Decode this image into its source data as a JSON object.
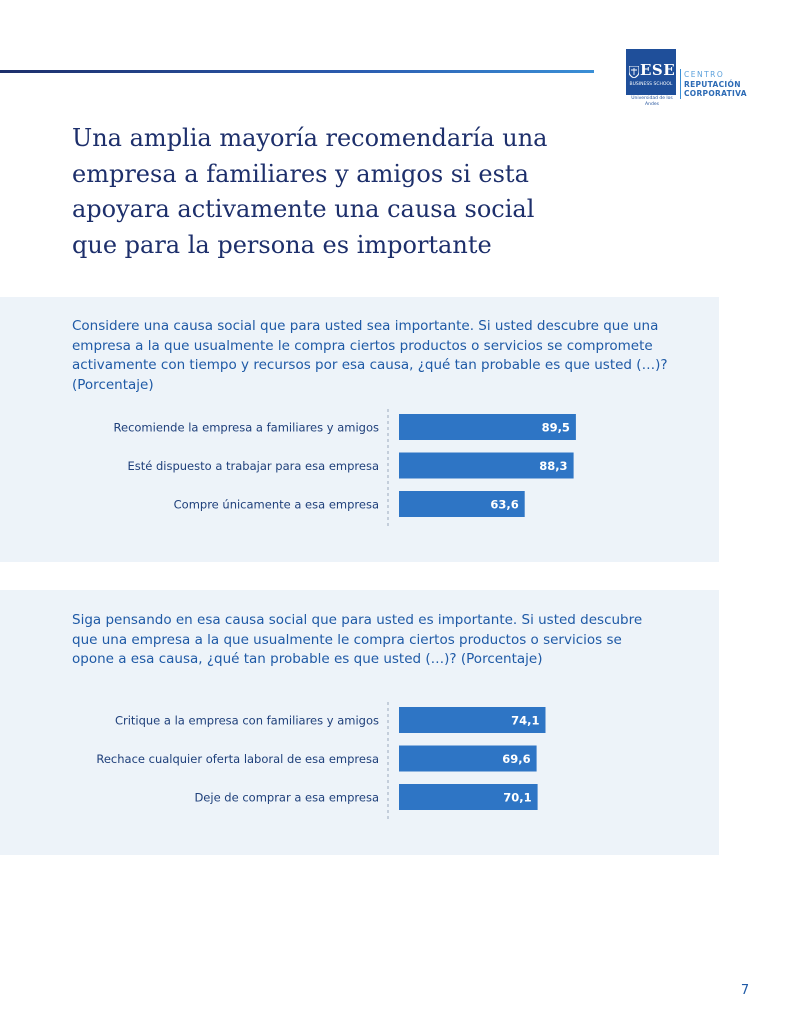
{
  "logo": {
    "brand": "ESE",
    "school": "BUSINESS SCHOOL",
    "university": "Universidad de los Andes",
    "centro": "CENTRO",
    "line2": "REPUTACIÓN",
    "line3": "CORPORATIVA"
  },
  "title": {
    "lines": [
      "Una amplia mayoría recomendaría una",
      "empresa a familiares y amigos si esta",
      "apoyara activamente una causa social",
      "que para la persona es importante"
    ]
  },
  "colors": {
    "bar": "#2e75c5",
    "panel": "#edf3f9",
    "title": "#1d2f6b",
    "question": "#1f5aa6",
    "label": "#1e3f7a"
  },
  "chart_data": [
    {
      "type": "bar",
      "orientation": "horizontal",
      "title_lines": [
        "Considere una causa social que para usted sea importante. Si usted descubre que una",
        "empresa a la que usualmente le compra ciertos productos o servicios se compromete",
        "activamente con tiempo y recursos por esa causa, ¿qué tan probable es que usted (…)?",
        "(Porcentaje)"
      ],
      "categories": [
        "Recomiende la empresa a familiares y amigos",
        "Esté dispuesto a trabajar para esa empresa",
        "Compre únicamente a esa empresa"
      ],
      "values": [
        89.5,
        88.3,
        63.6
      ],
      "value_labels": [
        "89,5",
        "88,3",
        "63,6"
      ],
      "xlim": [
        0,
        100
      ],
      "grid": false,
      "legend": "none"
    },
    {
      "type": "bar",
      "orientation": "horizontal",
      "title_lines": [
        "Siga pensando en esa causa social que para usted es importante. Si usted descubre",
        "que una empresa a la que usualmente le compra ciertos productos o servicios se",
        "opone a esa causa, ¿qué tan probable es que usted (…)? (Porcentaje)"
      ],
      "categories": [
        "Critique a la empresa con familiares y amigos",
        "Rechace cualquier oferta laboral de esa empresa",
        "Deje de comprar a esa empresa"
      ],
      "values": [
        74.1,
        69.6,
        70.1
      ],
      "value_labels": [
        "74,1",
        "69,6",
        "70,1"
      ],
      "xlim": [
        0,
        100
      ],
      "grid": false,
      "legend": "none"
    }
  ],
  "page_number": "7"
}
